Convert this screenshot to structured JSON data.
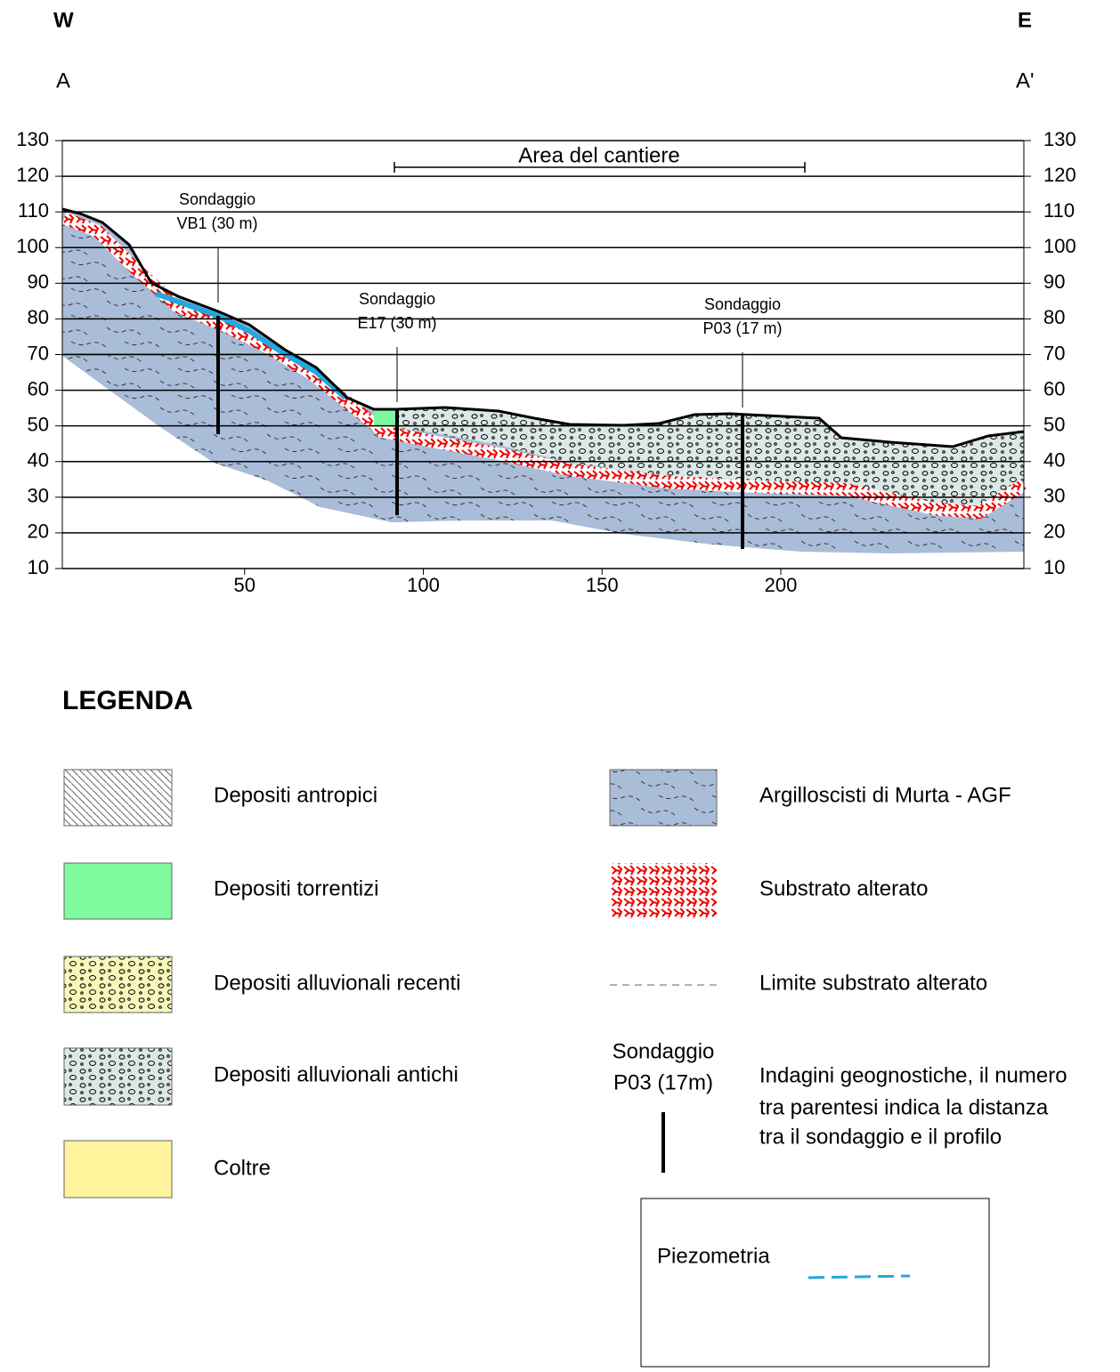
{
  "header": {
    "west": "W",
    "east": "E",
    "start": "A",
    "end": "A'"
  },
  "profile": {
    "xlim": [
      0,
      268
    ],
    "ylim": [
      10,
      130
    ],
    "xticks": [
      50,
      100,
      150,
      200
    ],
    "yticks": [
      10,
      20,
      30,
      40,
      50,
      60,
      70,
      80,
      90,
      100,
      110,
      120,
      130
    ],
    "site_label": "Area del cantiere",
    "boreholes": [
      {
        "name": "Sondaggio",
        "label": "VB1 (30 m)"
      },
      {
        "name": "Sondaggio",
        "label": "E17 (30 m)"
      },
      {
        "name": "Sondaggio",
        "label": "P03 (17 m)"
      }
    ]
  },
  "legend": {
    "title": "LEGENDA",
    "left": [
      "Depositi antropici",
      "Depositi torrentizi",
      "Depositi alluvionali recenti",
      "Depositi alluvionali antichi",
      "Coltre"
    ],
    "right": [
      "Argilloscisti di Murta - AGF",
      "Substrato alterato",
      "Limite substrato alterato"
    ],
    "borehole_example": [
      "Sondaggio",
      "P03 (17m)"
    ],
    "borehole_note": [
      "Indagini geognostiche, il numero",
      "tra parentesi indica la distanza",
      "tra il sondaggio e il profilo"
    ],
    "piezometry": "Piezometria"
  }
}
